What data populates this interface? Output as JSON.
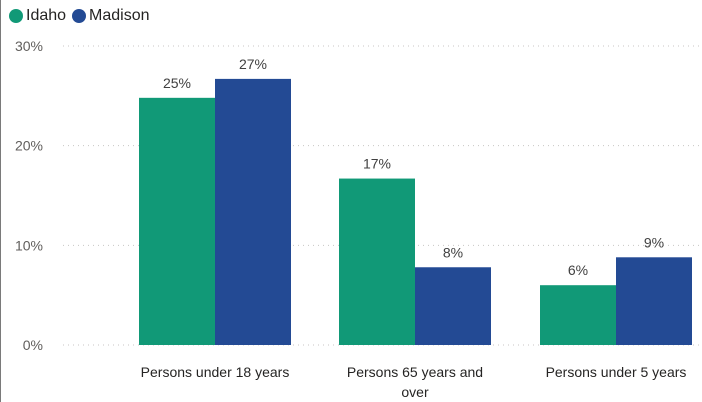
{
  "chart_data": {
    "type": "bar",
    "categories": [
      [
        "Persons under 18 years"
      ],
      [
        "Persons 65 years and",
        "over"
      ],
      [
        "Persons under 5 years"
      ]
    ],
    "series": [
      {
        "name": "Idaho",
        "color": "#119977",
        "values": [
          24.8,
          16.7,
          6.0
        ],
        "labels": [
          "25%",
          "17%",
          "6%"
        ]
      },
      {
        "name": "Madison",
        "color": "#234a94",
        "values": [
          26.7,
          7.8,
          8.8
        ],
        "labels": [
          "27%",
          "8%",
          "9%"
        ]
      }
    ],
    "ylim": [
      0,
      30
    ],
    "yticks": [
      {
        "value": 0,
        "label": "0%"
      },
      {
        "value": 10,
        "label": "10%"
      },
      {
        "value": 20,
        "label": "20%"
      },
      {
        "value": 30,
        "label": "30%"
      }
    ],
    "grid": true,
    "legend": "top-left"
  }
}
